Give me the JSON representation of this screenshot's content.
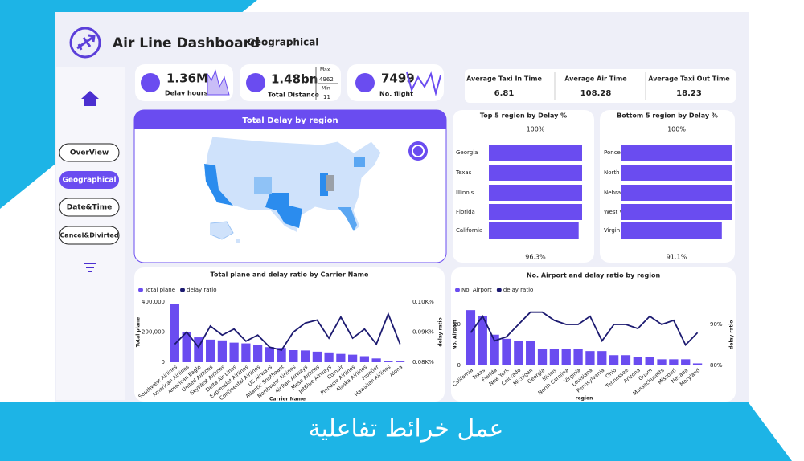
{
  "header": {
    "title": "Air Line Dashboard",
    "subtitle": "Geographical"
  },
  "nav": [
    "OverView",
    "Geographical",
    "Date&Time",
    "Cancel&Divirted"
  ],
  "kpis": [
    {
      "value": "1.36M",
      "label": "Delay hours"
    },
    {
      "value": "1.48bn",
      "label": "Total Distance",
      "max_label": "Max",
      "max": 4962,
      "min_label": "Min",
      "min": 11
    },
    {
      "value": 7499,
      "label": "No. flight"
    }
  ],
  "averages": [
    {
      "label": "Average Taxi In Time",
      "value": 6.81
    },
    {
      "label": "Average Air Time",
      "value": 108.28
    },
    {
      "label": "Average Taxi Out Time",
      "value": 18.23
    }
  ],
  "map": {
    "title": "Total Delay by region"
  },
  "chart_data": [
    {
      "type": "hbar",
      "title": "Top 5 region by Delay %",
      "top_label": "100%",
      "bottom_label": "96.3%",
      "categories": [
        "Georgia",
        "Texas",
        "Illinois",
        "Florida",
        "California"
      ],
      "values": [
        100,
        100,
        100,
        100,
        96.3
      ],
      "color": "#6a4cf0",
      "xlim": [
        0,
        100
      ]
    },
    {
      "type": "hbar",
      "title": "Bottom 5 region by Delay %",
      "top_label": "100%",
      "bottom_label": "91.1%",
      "categories": [
        "Ponce",
        "North Dakota",
        "Nebraska",
        "West Virginia",
        "Virgin Islan..."
      ],
      "values": [
        100,
        100,
        100,
        100,
        91.1
      ],
      "color": "#6a4cf0",
      "xlim": [
        0,
        100
      ]
    },
    {
      "type": "combo",
      "title": "Total plane and delay ratio by Carrier Name",
      "xlabel": "Carrier Name",
      "ylabel": "Total plane",
      "y2label": "delay ratio",
      "categories": [
        "Southwest Airlines",
        "American Airlines",
        "American Eagle",
        "United Airlines",
        "SkyWest Airlines",
        "Delta Air Lines",
        "ExpressJet Airlines",
        "Continental Airlines",
        "US Airways",
        "Atlantic Southeast",
        "Northwest Airlines",
        "AirTran Airways",
        "Mesa Airlines",
        "JetBlue Airways",
        "Comair",
        "Pinnacle Airlines",
        "Alaska Airlines",
        "Frontier",
        "Hawaiian Airlines",
        "Aloha"
      ],
      "series": [
        {
          "name": "Total plane",
          "color": "#6a4cf0",
          "values": [
            385000,
            200000,
            165000,
            150000,
            145000,
            130000,
            125000,
            115000,
            100000,
            95000,
            80000,
            78000,
            70000,
            65000,
            55000,
            50000,
            40000,
            25000,
            10000,
            5000
          ]
        },
        {
          "name": "delay ratio",
          "color": "#1c1a70",
          "axis": "y2",
          "values": [
            86,
            90,
            85,
            92,
            89,
            91,
            87,
            89,
            85,
            84,
            90,
            93,
            94,
            88,
            95,
            88,
            91,
            86,
            96,
            86
          ]
        }
      ],
      "ylim": [
        0,
        400000
      ],
      "yticks": [
        0,
        {
          "value": 200000,
          "label": "200,000"
        },
        {
          "value": 400000,
          "label": "400,000"
        }
      ],
      "y2lim": [
        80,
        100
      ],
      "y2ticks": [
        {
          "value": 80,
          "label": "0.08K%"
        },
        {
          "value": 90,
          "label": "0.09K%"
        },
        {
          "value": 100,
          "label": "0.10K%"
        }
      ]
    },
    {
      "type": "combo",
      "title": "No. Airport and delay ratio by region",
      "xlabel": "region",
      "ylabel": "No. Airport",
      "y2label": "delay ratio",
      "categories": [
        "California",
        "Texas",
        "Florida",
        "New York",
        "Colorado",
        "Michigan",
        "Georgia",
        "Illinois",
        "North Carolina",
        "Virginia",
        "Louisiana",
        "Pennsylvania",
        "Ohio",
        "Tennessee",
        "Arizona",
        "Guam",
        "Massachusetts",
        "Missouri",
        "Nevada",
        "Maryland"
      ],
      "series": [
        {
          "name": "No. Airport",
          "color": "#6a4cf0",
          "values": [
            27,
            24,
            15,
            13,
            12,
            12,
            8,
            8,
            8,
            8,
            7,
            7,
            5,
            5,
            4,
            4,
            3,
            3,
            3,
            1
          ]
        },
        {
          "name": "delay ratio",
          "color": "#1c1a70",
          "axis": "y2",
          "values": [
            88,
            92,
            86,
            87,
            90,
            93,
            93,
            91,
            90,
            90,
            92,
            86,
            90,
            90,
            89,
            92,
            90,
            91,
            85,
            88
          ]
        }
      ],
      "ylim": [
        0,
        30
      ],
      "yticks": [
        0,
        20
      ],
      "y2lim": [
        80,
        95
      ],
      "y2ticks": [
        {
          "value": 80,
          "label": "80%"
        },
        {
          "value": 90,
          "label": "90%"
        }
      ]
    }
  ],
  "banner": "عمل خرائط تفاعلية"
}
